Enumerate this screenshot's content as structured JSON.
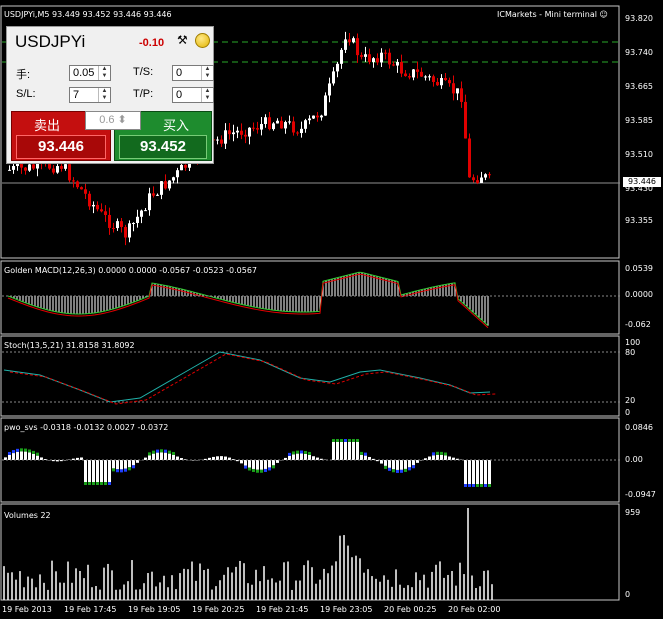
{
  "header": {
    "symbol_info": "USDJPYi,M5  93.449 93.452 93.446 93.446",
    "broker": "ICMarkets - Mini terminal ☺"
  },
  "trade_panel": {
    "symbol": "USDJPYi",
    "change": "-0.10",
    "lot_label": "手:",
    "lot_value": "0.05",
    "sl_label": "S/L:",
    "sl_value": "7",
    "ts_label": "T/S:",
    "ts_value": "0",
    "tp_label": "T/P:",
    "tp_value": "0",
    "sell_label": "卖出",
    "buy_label": "买入",
    "volume": "0.6",
    "sell_price": "93.446",
    "buy_price": "93.452"
  },
  "price_axis": [
    "93.820",
    "93.740",
    "93.665",
    "93.585",
    "93.510",
    "93.430",
    "93.355"
  ],
  "current_price": "93.446",
  "macd": {
    "title": "Golden MACD(12,26,3) 0.0000 0.0000 -0.0567 -0.0523 -0.0567",
    "axis": [
      "0.0539",
      "0.0000",
      "-0.062"
    ]
  },
  "stoch": {
    "title": "Stoch(13,5,21) 31.8158 31.8092",
    "axis": [
      "100",
      "80",
      "20",
      "0"
    ]
  },
  "pwo": {
    "title": "pwo_svs -0.0318 -0.0132 0.0027 -0.0372",
    "axis": [
      "0.0846",
      "0.00",
      "-0.0947"
    ]
  },
  "volumes": {
    "title": "Volumes 22",
    "axis": [
      "959",
      "0"
    ]
  },
  "time_axis": [
    "19 Feb 2013",
    "19 Feb 17:45",
    "19 Feb 19:05",
    "19 Feb 20:25",
    "19 Feb 21:45",
    "19 Feb 23:05",
    "20 Feb 00:25",
    "20 Feb 02:00"
  ],
  "colors": {
    "bull": "#ffffff",
    "bear": "#e00000",
    "macd_up": "#33cc33",
    "macd_down": "#e00000",
    "stoch_main": "#20b2aa",
    "stoch_signal": "#e00000",
    "pwo_blue": "#1f3fff",
    "pwo_green": "#1aa01a"
  }
}
